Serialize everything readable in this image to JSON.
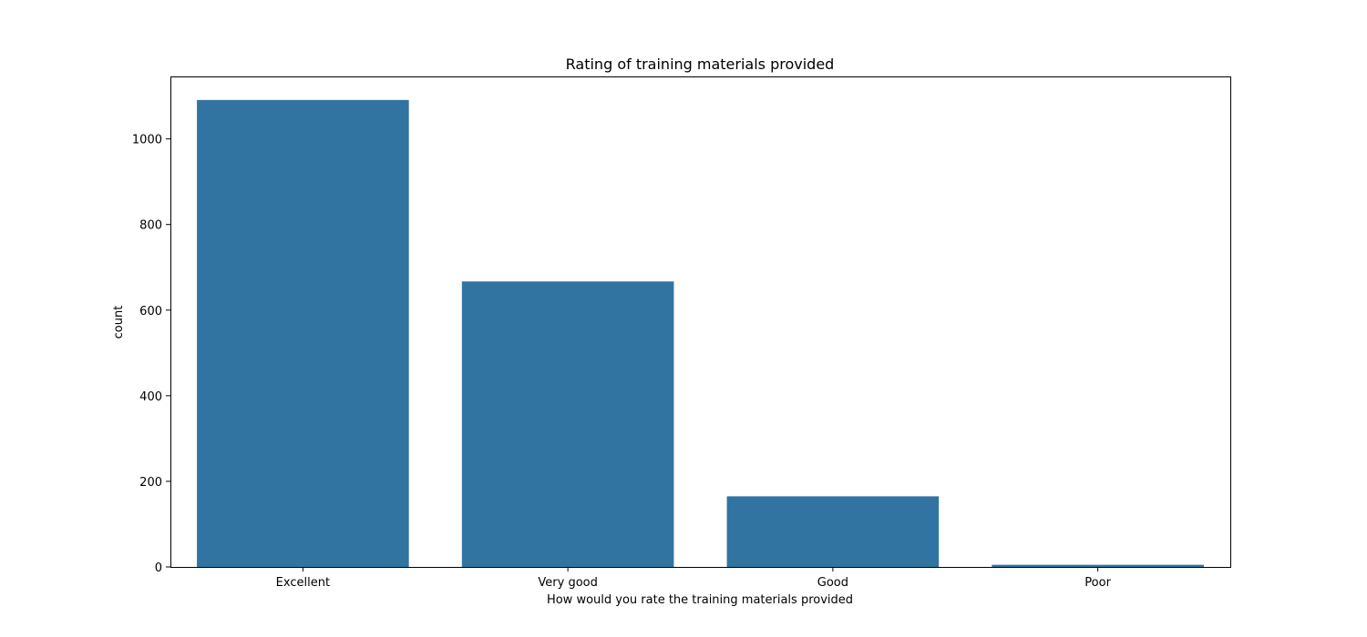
{
  "chart_data": {
    "type": "bar",
    "title": "Rating of training materials provided",
    "xlabel": "How would you rate the training materials provided",
    "ylabel": "count",
    "categories": [
      "Excellent",
      "Very good",
      "Good",
      "Poor"
    ],
    "values": [
      1091,
      667,
      165,
      5
    ],
    "ylim": [
      0,
      1146
    ],
    "yticks": [
      0,
      200,
      400,
      600,
      800,
      1000
    ],
    "grid": false,
    "legend": "none",
    "bar_color": "#3274a1"
  }
}
